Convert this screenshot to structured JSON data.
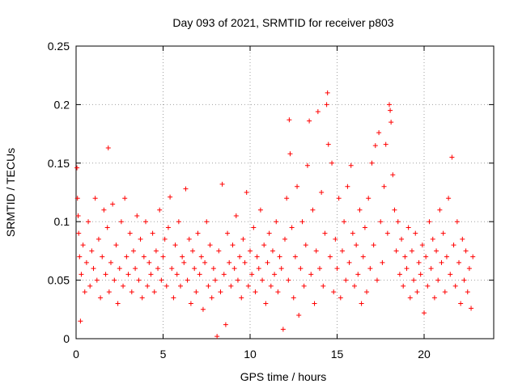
{
  "chart_data": {
    "type": "scatter",
    "title": "Day 093 of 2021, SRMTID for receiver p803",
    "xlabel": "GPS time / hours",
    "ylabel": "SRMTID / TECUs",
    "xlim": [
      0,
      24
    ],
    "ylim": [
      0,
      0.25
    ],
    "x_ticks": [
      0,
      5,
      10,
      15,
      20
    ],
    "x_tick_labels": [
      "0",
      "5",
      "10",
      "15",
      "20"
    ],
    "y_ticks": [
      0,
      0.05,
      0.1,
      0.15,
      0.2,
      0.25
    ],
    "y_tick_labels": [
      "0",
      "0.05",
      "0.1",
      "0.15",
      "0.2",
      "0.25"
    ],
    "grid": true,
    "marker": "+",
    "color": "#ff0000",
    "series": [
      {
        "name": "SRMTID",
        "points": [
          [
            0.05,
            0.146
          ],
          [
            0.08,
            0.12
          ],
          [
            0.12,
            0.105
          ],
          [
            0.15,
            0.09
          ],
          [
            0.2,
            0.07
          ],
          [
            0.25,
            0.015
          ],
          [
            0.3,
            0.055
          ],
          [
            0.4,
            0.08
          ],
          [
            0.5,
            0.04
          ],
          [
            0.6,
            0.065
          ],
          [
            0.7,
            0.1
          ],
          [
            0.8,
            0.045
          ],
          [
            0.9,
            0.075
          ],
          [
            1.0,
            0.06
          ],
          [
            1.1,
            0.12
          ],
          [
            1.2,
            0.05
          ],
          [
            1.3,
            0.085
          ],
          [
            1.4,
            0.035
          ],
          [
            1.5,
            0.07
          ],
          [
            1.6,
            0.11
          ],
          [
            1.7,
            0.055
          ],
          [
            1.8,
            0.095
          ],
          [
            1.85,
            0.163
          ],
          [
            1.9,
            0.04
          ],
          [
            2.0,
            0.065
          ],
          [
            2.1,
            0.115
          ],
          [
            2.2,
            0.05
          ],
          [
            2.3,
            0.08
          ],
          [
            2.4,
            0.03
          ],
          [
            2.5,
            0.06
          ],
          [
            2.6,
            0.1
          ],
          [
            2.7,
            0.045
          ],
          [
            2.8,
            0.12
          ],
          [
            2.9,
            0.07
          ],
          [
            3.0,
            0.055
          ],
          [
            3.1,
            0.09
          ],
          [
            3.2,
            0.04
          ],
          [
            3.3,
            0.075
          ],
          [
            3.4,
            0.06
          ],
          [
            3.5,
            0.105
          ],
          [
            3.6,
            0.05
          ],
          [
            3.7,
            0.085
          ],
          [
            3.8,
            0.035
          ],
          [
            3.9,
            0.07
          ],
          [
            4.0,
            0.1
          ],
          [
            4.1,
            0.045
          ],
          [
            4.2,
            0.065
          ],
          [
            4.3,
            0.055
          ],
          [
            4.4,
            0.09
          ],
          [
            4.5,
            0.04
          ],
          [
            4.6,
            0.075
          ],
          [
            4.7,
            0.06
          ],
          [
            4.8,
            0.11
          ],
          [
            4.9,
            0.05
          ],
          [
            5.0,
            0.07
          ],
          [
            5.1,
            0.085
          ],
          [
            5.2,
            0.045
          ],
          [
            5.3,
            0.095
          ],
          [
            5.4,
            0.121
          ],
          [
            5.5,
            0.06
          ],
          [
            5.6,
            0.035
          ],
          [
            5.7,
            0.08
          ],
          [
            5.8,
            0.055
          ],
          [
            5.9,
            0.1
          ],
          [
            6.0,
            0.045
          ],
          [
            6.1,
            0.07
          ],
          [
            6.2,
            0.065
          ],
          [
            6.3,
            0.128
          ],
          [
            6.4,
            0.05
          ],
          [
            6.5,
            0.085
          ],
          [
            6.6,
            0.03
          ],
          [
            6.7,
            0.075
          ],
          [
            6.8,
            0.06
          ],
          [
            6.9,
            0.04
          ],
          [
            7.0,
            0.09
          ],
          [
            7.1,
            0.055
          ],
          [
            7.2,
            0.07
          ],
          [
            7.3,
            0.025
          ],
          [
            7.4,
            0.065
          ],
          [
            7.5,
            0.1
          ],
          [
            7.6,
            0.045
          ],
          [
            7.7,
            0.08
          ],
          [
            7.8,
            0.035
          ],
          [
            7.9,
            0.06
          ],
          [
            8.0,
            0.05
          ],
          [
            8.1,
            0.002
          ],
          [
            8.2,
            0.075
          ],
          [
            8.3,
            0.04
          ],
          [
            8.4,
            0.132
          ],
          [
            8.5,
            0.055
          ],
          [
            8.6,
            0.012
          ],
          [
            8.7,
            0.09
          ],
          [
            8.8,
            0.065
          ],
          [
            8.9,
            0.045
          ],
          [
            9.0,
            0.08
          ],
          [
            9.1,
            0.06
          ],
          [
            9.2,
            0.105
          ],
          [
            9.3,
            0.05
          ],
          [
            9.4,
            0.07
          ],
          [
            9.5,
            0.035
          ],
          [
            9.6,
            0.085
          ],
          [
            9.7,
            0.065
          ],
          [
            9.8,
            0.125
          ],
          [
            9.9,
            0.045
          ],
          [
            10.0,
            0.075
          ],
          [
            10.1,
            0.055
          ],
          [
            10.2,
            0.095
          ],
          [
            10.3,
            0.04
          ],
          [
            10.4,
            0.07
          ],
          [
            10.5,
            0.06
          ],
          [
            10.6,
            0.11
          ],
          [
            10.7,
            0.05
          ],
          [
            10.8,
            0.08
          ],
          [
            10.9,
            0.03
          ],
          [
            11.0,
            0.065
          ],
          [
            11.1,
            0.09
          ],
          [
            11.2,
            0.045
          ],
          [
            11.3,
            0.075
          ],
          [
            11.4,
            0.055
          ],
          [
            11.5,
            0.1
          ],
          [
            11.6,
            0.04
          ],
          [
            11.7,
            0.07
          ],
          [
            11.8,
            0.06
          ],
          [
            11.9,
            0.008
          ],
          [
            12.0,
            0.085
          ],
          [
            12.1,
            0.12
          ],
          [
            12.2,
            0.05
          ],
          [
            12.25,
            0.187
          ],
          [
            12.3,
            0.158
          ],
          [
            12.4,
            0.095
          ],
          [
            12.5,
            0.035
          ],
          [
            12.6,
            0.07
          ],
          [
            12.7,
            0.13
          ],
          [
            12.8,
            0.02
          ],
          [
            12.9,
            0.06
          ],
          [
            13.0,
            0.1
          ],
          [
            13.1,
            0.045
          ],
          [
            13.2,
            0.08
          ],
          [
            13.3,
            0.148
          ],
          [
            13.4,
            0.186
          ],
          [
            13.5,
            0.055
          ],
          [
            13.6,
            0.11
          ],
          [
            13.7,
            0.03
          ],
          [
            13.8,
            0.075
          ],
          [
            13.9,
            0.194
          ],
          [
            14.0,
            0.06
          ],
          [
            14.1,
            0.125
          ],
          [
            14.2,
            0.045
          ],
          [
            14.3,
            0.09
          ],
          [
            14.4,
            0.2
          ],
          [
            14.45,
            0.21
          ],
          [
            14.5,
            0.166
          ],
          [
            14.6,
            0.07
          ],
          [
            14.7,
            0.15
          ],
          [
            14.8,
            0.04
          ],
          [
            14.9,
            0.085
          ],
          [
            15.0,
            0.06
          ],
          [
            15.1,
            0.12
          ],
          [
            15.2,
            0.035
          ],
          [
            15.3,
            0.075
          ],
          [
            15.4,
            0.1
          ],
          [
            15.5,
            0.05
          ],
          [
            15.6,
            0.13
          ],
          [
            15.7,
            0.065
          ],
          [
            15.8,
            0.148
          ],
          [
            15.9,
            0.09
          ],
          [
            16.0,
            0.045
          ],
          [
            16.1,
            0.08
          ],
          [
            16.2,
            0.055
          ],
          [
            16.3,
            0.11
          ],
          [
            16.4,
            0.03
          ],
          [
            16.5,
            0.07
          ],
          [
            16.6,
            0.095
          ],
          [
            16.7,
            0.04
          ],
          [
            16.8,
            0.12
          ],
          [
            16.9,
            0.06
          ],
          [
            17.0,
            0.15
          ],
          [
            17.1,
            0.08
          ],
          [
            17.2,
            0.165
          ],
          [
            17.3,
            0.05
          ],
          [
            17.4,
            0.176
          ],
          [
            17.5,
            0.1
          ],
          [
            17.6,
            0.065
          ],
          [
            17.7,
            0.13
          ],
          [
            17.8,
            0.166
          ],
          [
            17.9,
            0.09
          ],
          [
            18.0,
            0.2
          ],
          [
            18.05,
            0.195
          ],
          [
            18.1,
            0.185
          ],
          [
            18.2,
            0.14
          ],
          [
            18.3,
            0.11
          ],
          [
            18.4,
            0.075
          ],
          [
            18.5,
            0.1
          ],
          [
            18.6,
            0.055
          ],
          [
            18.7,
            0.085
          ],
          [
            18.8,
            0.045
          ],
          [
            18.9,
            0.07
          ],
          [
            19.0,
            0.06
          ],
          [
            19.1,
            0.095
          ],
          [
            19.2,
            0.035
          ],
          [
            19.3,
            0.075
          ],
          [
            19.4,
            0.05
          ],
          [
            19.5,
            0.09
          ],
          [
            19.6,
            0.04
          ],
          [
            19.7,
            0.065
          ],
          [
            19.8,
            0.055
          ],
          [
            19.9,
            0.08
          ],
          [
            20.0,
            0.022
          ],
          [
            20.1,
            0.07
          ],
          [
            20.2,
            0.045
          ],
          [
            20.3,
            0.1
          ],
          [
            20.4,
            0.06
          ],
          [
            20.5,
            0.085
          ],
          [
            20.6,
            0.035
          ],
          [
            20.7,
            0.075
          ],
          [
            20.8,
            0.05
          ],
          [
            20.9,
            0.11
          ],
          [
            21.0,
            0.065
          ],
          [
            21.1,
            0.09
          ],
          [
            21.2,
            0.04
          ],
          [
            21.3,
            0.07
          ],
          [
            21.4,
            0.12
          ],
          [
            21.5,
            0.055
          ],
          [
            21.6,
            0.155
          ],
          [
            21.7,
            0.08
          ],
          [
            21.8,
            0.045
          ],
          [
            21.9,
            0.1
          ],
          [
            22.0,
            0.065
          ],
          [
            22.1,
            0.03
          ],
          [
            22.2,
            0.085
          ],
          [
            22.3,
            0.05
          ],
          [
            22.4,
            0.075
          ],
          [
            22.5,
            0.04
          ],
          [
            22.6,
            0.06
          ],
          [
            22.7,
            0.026
          ],
          [
            22.8,
            0.07
          ]
        ]
      }
    ]
  }
}
